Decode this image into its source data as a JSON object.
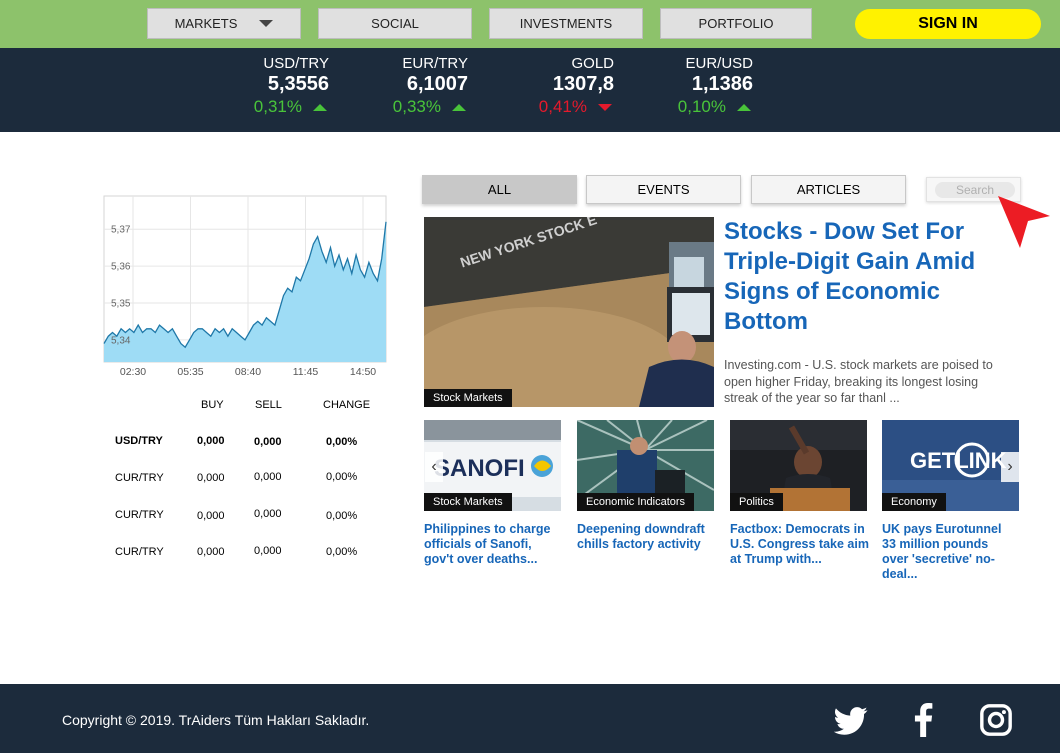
{
  "nav": {
    "markets": "MARKETS",
    "social": "SOCIAL",
    "investments": "INVESTMENTS",
    "portfolio": "PORTFOLIO",
    "signin": "SIGN IN"
  },
  "ticker": [
    {
      "symbol": "USD/TRY",
      "value": "5,3556",
      "change": "0,31%",
      "direction": "up"
    },
    {
      "symbol": "EUR/TRY",
      "value": "6,1007",
      "change": "0,33%",
      "direction": "up"
    },
    {
      "symbol": "GOLD",
      "value": "1307,8",
      "change": "0,41%",
      "direction": "down"
    },
    {
      "symbol": "EUR/USD",
      "value": "1,1386",
      "change": "0,10%",
      "direction": "up"
    }
  ],
  "chart_data": {
    "type": "area",
    "x_ticks": [
      "02:30",
      "05:35",
      "08:40",
      "11:45",
      "14:50"
    ],
    "y_ticks": [
      "5,34",
      "5,35",
      "5,36",
      "5,37"
    ],
    "ylim": [
      5.334,
      5.379
    ],
    "series": [
      {
        "values": [
          5.339,
          5.341,
          5.342,
          5.341,
          5.343,
          5.342,
          5.343,
          5.342,
          5.344,
          5.342,
          5.343,
          5.343,
          5.342,
          5.344,
          5.343,
          5.342,
          5.343,
          5.341,
          5.339,
          5.338,
          5.34,
          5.342,
          5.343,
          5.343,
          5.342,
          5.341,
          5.343,
          5.342,
          5.343,
          5.341,
          5.343,
          5.342,
          5.341,
          5.34,
          5.342,
          5.344,
          5.345,
          5.344,
          5.346,
          5.345,
          5.344,
          5.348,
          5.352,
          5.354,
          5.353,
          5.357,
          5.356,
          5.359,
          5.362,
          5.366,
          5.368,
          5.364,
          5.361,
          5.365,
          5.36,
          5.363,
          5.359,
          5.362,
          5.358,
          5.363,
          5.359,
          5.357,
          5.361,
          5.358,
          5.356,
          5.362,
          5.372
        ],
        "color": "#1f78a8",
        "fill": "#9edcf5"
      }
    ]
  },
  "rates": {
    "headers": {
      "buy": "BUY",
      "sell": "SELL",
      "change": "CHANGE"
    },
    "rows": [
      {
        "pair": "USD/TRY",
        "buy": "0,000",
        "sell": "0,000",
        "change": "0,00%",
        "bold": true
      },
      {
        "pair": "CUR/TRY",
        "buy": "0,000",
        "sell": "0,000",
        "change": "0,00%",
        "bold": false
      },
      {
        "pair": "CUR/TRY",
        "buy": "0,000",
        "sell": "0,000",
        "change": "0,00%",
        "bold": false
      },
      {
        "pair": "CUR/TRY",
        "buy": "0,000",
        "sell": "0,000",
        "change": "0,00%",
        "bold": false
      }
    ]
  },
  "tabs": {
    "all": "ALL",
    "events": "EVENTS",
    "articles": "ARTICLES"
  },
  "search": {
    "placeholder": "Search"
  },
  "feature": {
    "tag": "Stock Markets",
    "image_text": "NEW YORK STOCK E",
    "title": "Stocks - Dow Set For Triple-Digit Gain Amid Signs of Economic Bottom",
    "description": "Investing.com - U.S. stock markets are poised to open higher Friday, breaking its longest losing streak of the year so far thanl   ..."
  },
  "cards": [
    {
      "tag": "Stock Markets",
      "image_text": "SANOFI",
      "title": "Philippines to charge officials of Sanofi, gov't over deaths..."
    },
    {
      "tag": "Economic Indicators",
      "title": "Deepening downdraft chills factory activity"
    },
    {
      "tag": "Politics",
      "title": "Factbox: Democrats in U.S. Congress take aim at Trump with..."
    },
    {
      "tag": "Economy",
      "image_text": "GETLINK",
      "title": "UK pays Eurotunnel 33 million pounds over 'secretive' no-deal..."
    }
  ],
  "footer": {
    "copyright": "Copyright © 2019. TrAiders Tüm Hakları Sakladır."
  },
  "colors": {
    "nav_bg": "#8dc26b",
    "dark_bg": "#1c2b3c",
    "signin": "#fff200",
    "link_blue": "#1766b8",
    "up": "#49c43a",
    "down": "#e41a2c"
  }
}
